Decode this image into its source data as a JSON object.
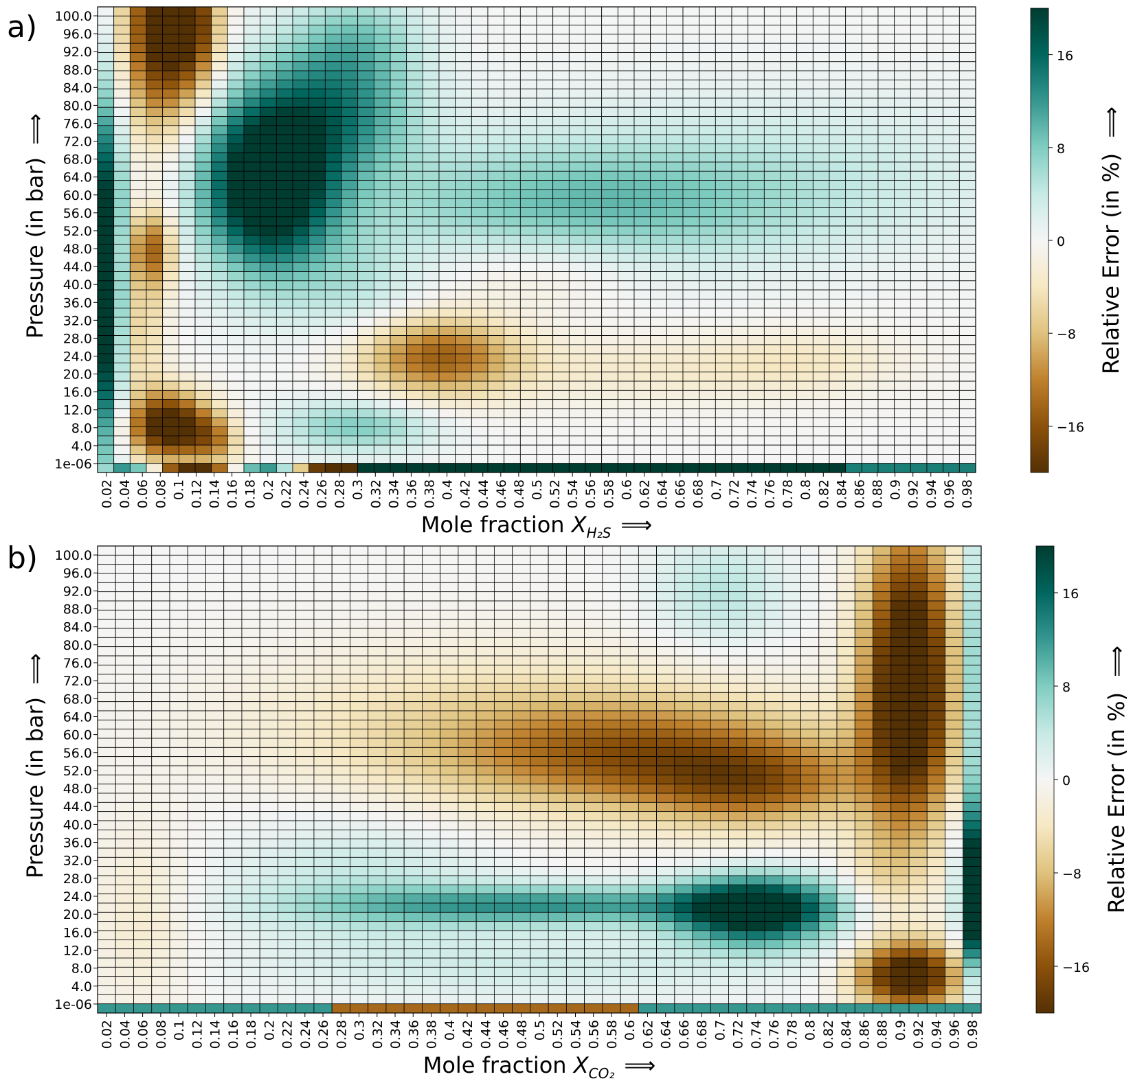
{
  "colors": {
    "min": "#543005",
    "mid": "#f5f5f5",
    "max": "#003c30",
    "scale": [
      "#543005",
      "#8c510a",
      "#bf812d",
      "#dfc27d",
      "#f6e8c3",
      "#f5f5f5",
      "#c7eae5",
      "#80cdc1",
      "#35978f",
      "#01665e",
      "#003c30"
    ]
  },
  "panels": [
    {
      "letter": "a)",
      "xlabel_prefix": "Mole fraction ",
      "xlabel_symbol": "X",
      "xlabel_subscript": "H₂S",
      "xlabel_arrow": "⟹",
      "ylabel": "Pressure (in bar)",
      "ylabel_arrow": "⟹",
      "colorbar_label": "Relative Error (in %)",
      "colorbar_arrow": "⟹"
    },
    {
      "letter": "b)",
      "xlabel_prefix": "Mole fraction ",
      "xlabel_symbol": "X",
      "xlabel_subscript": "CO₂",
      "xlabel_arrow": "⟹",
      "ylabel": "Pressure (in bar)",
      "ylabel_arrow": "⟹",
      "colorbar_label": "Relative Error (in %)",
      "colorbar_arrow": "⟹"
    }
  ],
  "chart_data": [
    {
      "type": "heatmap",
      "panel": "a)",
      "x_tick_labels": [
        "0.02",
        "0.04",
        "0.06",
        "0.08",
        "0.1",
        "0.12",
        "0.14",
        "0.16",
        "0.18",
        "0.2",
        "0.22",
        "0.24",
        "0.26",
        "0.28",
        "0.3",
        "0.32",
        "0.34",
        "0.36",
        "0.38",
        "0.4",
        "0.42",
        "0.44",
        "0.46",
        "0.48",
        "0.5",
        "0.52",
        "0.54",
        "0.56",
        "0.58",
        "0.6",
        "0.62",
        "0.64",
        "0.66",
        "0.68",
        "0.7",
        "0.72",
        "0.74",
        "0.76",
        "0.78",
        "0.8",
        "0.82",
        "0.84",
        "0.86",
        "0.88",
        "0.9",
        "0.92",
        "0.94",
        "0.96",
        "0.98"
      ],
      "y_tick_labels": [
        "100.0",
        "96.0",
        "92.0",
        "88.0",
        "84.0",
        "80.0",
        "76.0",
        "72.0",
        "68.0",
        "64.0",
        "60.0",
        "56.0",
        "52.0",
        "48.0",
        "44.0",
        "40.0",
        "36.0",
        "32.0",
        "28.0",
        "24.0",
        "20.0",
        "16.0",
        "12.0",
        "8.0",
        "4.0",
        "1e-06"
      ],
      "x_cells": 54,
      "y_cells": 51,
      "x_range": [
        0.01,
        0.99
      ],
      "y_range": [
        1e-06,
        100.0
      ],
      "colorbar": {
        "label": "Relative Error (in %)",
        "ticks": [
          16,
          8,
          0,
          -8,
          -16
        ],
        "tick_labels": [
          "16",
          "8",
          "0",
          "−8",
          "−16"
        ],
        "vmin": -20,
        "vmax": 20
      },
      "blobs": [
        {
          "x": 0.08,
          "y": 96,
          "sx": 0.028,
          "sy": 15,
          "v": -22
        },
        {
          "x": 0.12,
          "y": 96,
          "sx": 0.02,
          "sy": 10,
          "v": -14
        },
        {
          "x": 0.09,
          "y": 10,
          "sx": 0.03,
          "sy": 5,
          "v": -24
        },
        {
          "x": 0.14,
          "y": 7,
          "sx": 0.02,
          "sy": 4,
          "v": -10
        },
        {
          "x": 0.07,
          "y": 48,
          "sx": 0.018,
          "sy": 6,
          "v": -14
        },
        {
          "x": 0.06,
          "y": 30,
          "sx": 0.018,
          "sy": 10,
          "v": -6
        },
        {
          "x": 0.02,
          "y": 42,
          "sx": 0.012,
          "sy": 26,
          "v": 26
        },
        {
          "x": 0.2,
          "y": 62,
          "sx": 0.05,
          "sy": 13,
          "v": 26
        },
        {
          "x": 0.28,
          "y": 78,
          "sx": 0.06,
          "sy": 10,
          "v": 12
        },
        {
          "x": 0.3,
          "y": 94,
          "sx": 0.05,
          "sy": 7,
          "v": 6
        },
        {
          "x": 0.39,
          "y": 25,
          "sx": 0.06,
          "sy": 6,
          "v": -14
        },
        {
          "x": 0.6,
          "y": 22,
          "sx": 0.14,
          "sy": 5,
          "v": -3
        },
        {
          "x": 0.8,
          "y": 24,
          "sx": 0.08,
          "sy": 5,
          "v": -3
        },
        {
          "x": 0.55,
          "y": 57,
          "sx": 0.18,
          "sy": 9,
          "v": 8
        },
        {
          "x": 0.75,
          "y": 66,
          "sx": 0.25,
          "sy": 12,
          "v": 3
        },
        {
          "x": 0.3,
          "y": 10,
          "sx": 0.06,
          "sy": 4,
          "v": 8
        },
        {
          "x": 0.3,
          "y": 40,
          "sx": 0.05,
          "sy": 8,
          "v": 4
        },
        {
          "x": 0.5,
          "y": 44,
          "sx": 0.08,
          "sy": 6,
          "v": -3
        }
      ]
    },
    {
      "type": "heatmap",
      "panel": "b)",
      "x_tick_labels": [
        "0.02",
        "0.04",
        "0.06",
        "0.08",
        "0.1",
        "0.12",
        "0.14",
        "0.16",
        "0.18",
        "0.2",
        "0.22",
        "0.24",
        "0.26",
        "0.28",
        "0.3",
        "0.32",
        "0.34",
        "0.36",
        "0.38",
        "0.4",
        "0.42",
        "0.44",
        "0.46",
        "0.48",
        "0.5",
        "0.52",
        "0.54",
        "0.56",
        "0.58",
        "0.6",
        "0.62",
        "0.64",
        "0.66",
        "0.68",
        "0.7",
        "0.72",
        "0.74",
        "0.76",
        "0.78",
        "0.8",
        "0.82",
        "0.84",
        "0.86",
        "0.88",
        "0.9",
        "0.92",
        "0.94",
        "0.96",
        "0.98"
      ],
      "y_tick_labels": [
        "100.0",
        "96.0",
        "92.0",
        "88.0",
        "84.0",
        "80.0",
        "76.0",
        "72.0",
        "68.0",
        "64.0",
        "60.0",
        "56.0",
        "52.0",
        "48.0",
        "44.0",
        "40.0",
        "36.0",
        "32.0",
        "28.0",
        "24.0",
        "20.0",
        "16.0",
        "12.0",
        "8.0",
        "4.0",
        "1e-06"
      ],
      "x_cells": 49,
      "y_cells": 51,
      "x_range": [
        0.01,
        0.99
      ],
      "y_range": [
        1e-06,
        100.0
      ],
      "colorbar": {
        "label": "Relative Error (in %)",
        "ticks": [
          16,
          8,
          0,
          -8,
          -16
        ],
        "tick_labels": [
          "16",
          "8",
          "0",
          "−8",
          "−16"
        ],
        "vmin": -20,
        "vmax": 20
      },
      "blobs": [
        {
          "x": 0.91,
          "y": 72,
          "sx": 0.035,
          "sy": 22,
          "v": -26
        },
        {
          "x": 0.91,
          "y": 8,
          "sx": 0.04,
          "sy": 5,
          "v": -24
        },
        {
          "x": 0.98,
          "y": 25,
          "sx": 0.01,
          "sy": 12,
          "v": 26
        },
        {
          "x": 0.98,
          "y": 70,
          "sx": 0.01,
          "sy": 25,
          "v": 10
        },
        {
          "x": 0.62,
          "y": 55,
          "sx": 0.15,
          "sy": 8,
          "v": -13
        },
        {
          "x": 0.74,
          "y": 48,
          "sx": 0.08,
          "sy": 6,
          "v": -10
        },
        {
          "x": 0.45,
          "y": 62,
          "sx": 0.2,
          "sy": 12,
          "v": -5
        },
        {
          "x": 0.74,
          "y": 22,
          "sx": 0.06,
          "sy": 5,
          "v": 24
        },
        {
          "x": 0.5,
          "y": 23,
          "sx": 0.16,
          "sy": 3,
          "v": 12
        },
        {
          "x": 0.3,
          "y": 28,
          "sx": 0.1,
          "sy": 10,
          "v": 4
        },
        {
          "x": 0.7,
          "y": 90,
          "sx": 0.05,
          "sy": 8,
          "v": 5
        },
        {
          "x": 0.06,
          "y": 20,
          "sx": 0.04,
          "sy": 15,
          "v": -3
        },
        {
          "x": 0.5,
          "y": 10,
          "sx": 0.2,
          "sy": 5,
          "v": 3
        },
        {
          "x": 0.88,
          "y": 30,
          "sx": 0.03,
          "sy": 8,
          "v": -4
        }
      ],
      "bottom_row_note": "1e-06 row: mostly negative for x 0.28-0.6, positive near 0.1-0.26 and 0.72-0.98"
    }
  ]
}
